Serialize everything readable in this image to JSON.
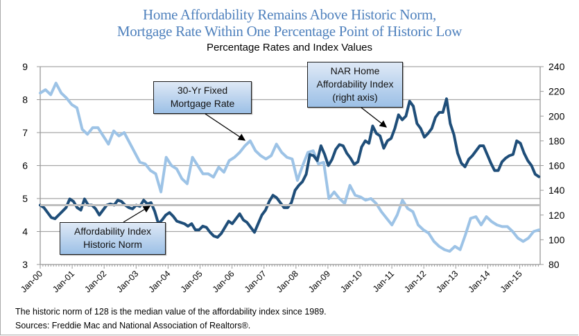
{
  "chart_data": {
    "type": "line",
    "title": "Home Affordability Remains Above Historic Norm,",
    "title_line2": "Mortgage Rate Within One Percentage Point of Historic Low",
    "subtitle": "Percentage Rates and Index Values",
    "x_ticks": [
      "Jan-00",
      "Jan-01",
      "Jan-02",
      "Jan-03",
      "Jan-04",
      "Jan-05",
      "Jan-06",
      "Jan-07",
      "Jan-08",
      "Jan-09",
      "Jan-10",
      "Jan-11",
      "Jan-12",
      "Jan-13",
      "Jan-14",
      "Jan-15"
    ],
    "x_range_years": [
      2000,
      2015.6
    ],
    "left_axis": {
      "ylim": [
        3,
        9
      ],
      "ticks": [
        "3",
        "4",
        "5",
        "6",
        "7",
        "8",
        "9"
      ],
      "label": ""
    },
    "right_axis": {
      "ylim": [
        80,
        240
      ],
      "ticks": [
        "80",
        "100",
        "120",
        "140",
        "160",
        "180",
        "200",
        "220",
        "240"
      ],
      "label": ""
    },
    "grid": true,
    "series": [
      {
        "name": "30-Yr Fixed Mortgage Rate",
        "axis": "left",
        "color": "#9dc3e6",
        "x_step_months": 2,
        "values": [
          8.2,
          8.3,
          8.15,
          8.5,
          8.2,
          8.05,
          7.85,
          7.75,
          7.1,
          6.95,
          7.15,
          7.15,
          6.9,
          6.65,
          7.05,
          6.9,
          7.0,
          6.7,
          6.4,
          6.1,
          6.05,
          5.85,
          5.75,
          5.2,
          6.25,
          6.0,
          5.9,
          5.6,
          5.45,
          6.25,
          6.0,
          5.75,
          5.75,
          5.65,
          5.95,
          5.8,
          6.15,
          6.25,
          6.4,
          6.6,
          6.75,
          6.45,
          6.3,
          6.2,
          6.3,
          6.65,
          6.4,
          6.25,
          6.2,
          5.55,
          6.0,
          6.4,
          6.45,
          6.05,
          6.1,
          5.0,
          5.2,
          5.0,
          4.85,
          5.4,
          5.1,
          5.05,
          4.95,
          5.0,
          4.85,
          4.6,
          4.4,
          4.2,
          4.5,
          4.95,
          4.7,
          4.6,
          4.2,
          4.05,
          3.95,
          3.7,
          3.55,
          3.45,
          3.4,
          3.55,
          3.45,
          3.9,
          4.4,
          4.45,
          4.2,
          4.45,
          4.3,
          4.2,
          4.15,
          4.15,
          4.0,
          3.8,
          3.7,
          3.8,
          4.0,
          4.05
        ]
      },
      {
        "name": "NAR Home Affordability Index (right axis)",
        "axis": "right",
        "color": "#1f4e79",
        "x_step_months": 2,
        "values": [
          128,
          126,
          122,
          118,
          117,
          120,
          123,
          126,
          133,
          131,
          126,
          124,
          133,
          128,
          128,
          125,
          120,
          124,
          128,
          129,
          128,
          132,
          131,
          128,
          126,
          125,
          128,
          127,
          132,
          129,
          130,
          123,
          113,
          116,
          120,
          122,
          119,
          115,
          114,
          113,
          111,
          113,
          108,
          108,
          111,
          110,
          106,
          103,
          102,
          105,
          110,
          115,
          113,
          117,
          121,
          116,
          114,
          110,
          106,
          113,
          120,
          124,
          131,
          136,
          134,
          130,
          126,
          126,
          130,
          140,
          144,
          147,
          153,
          169,
          168,
          164,
          176,
          169,
          160,
          165,
          173,
          177,
          176,
          170,
          166,
          161,
          163,
          175,
          180,
          178,
          192,
          186,
          184,
          174,
          180,
          182,
          190,
          201,
          197,
          200,
          212,
          208,
          194,
          190,
          183,
          186,
          190,
          199,
          203,
          203,
          214,
          194,
          185,
          170,
          162,
          159,
          165,
          168,
          172,
          176,
          176,
          169,
          162,
          156,
          156,
          163,
          166,
          168,
          169,
          180,
          178,
          170,
          164,
          160,
          153,
          151
        ]
      },
      {
        "name": "Affordability Index Historic Norm",
        "axis": "right",
        "color": "#bfbfbf",
        "constant": 128
      }
    ],
    "annotations": [
      {
        "label_line1": "30-Yr Fixed",
        "label_line2": "Mortgage Rate"
      },
      {
        "label_line1": "NAR Home",
        "label_line2": "Affordability Index",
        "label_line3": "(right axis)"
      },
      {
        "label_line1": "Affordability Index",
        "label_line2": "Historic Norm"
      }
    ]
  },
  "notes": {
    "line1": "The historic norm of 128 is the median value of the affordability index since 1989.",
    "line2": "Sources: Freddie Mac and National Association of Realtors®."
  }
}
